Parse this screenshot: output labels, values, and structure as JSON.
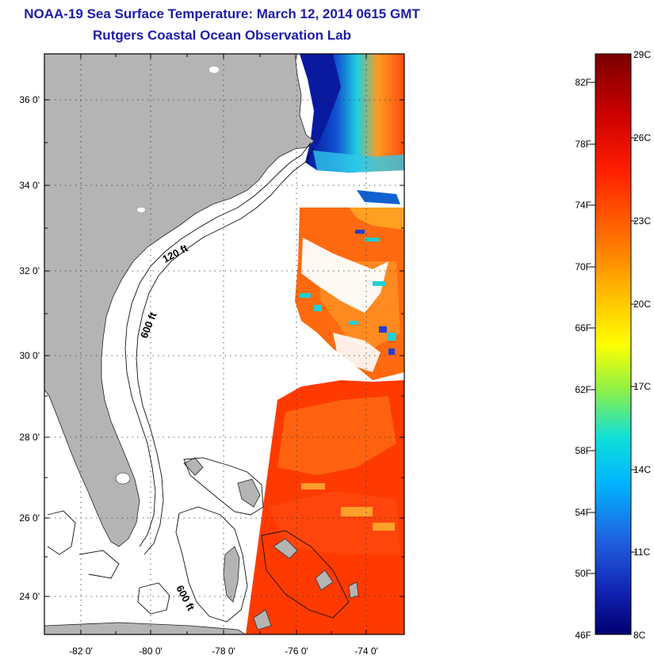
{
  "header": {
    "title": "NOAA-19 Sea Surface Temperature:  March 12, 2014 0615 GMT",
    "subtitle": "Rutgers Coastal Ocean Observation Lab"
  },
  "map": {
    "lat_ticks": [
      "36 0'",
      "34 0'",
      "32 0'",
      "30 0'",
      "28 0'",
      "26 0'",
      "24 0'"
    ],
    "lon_ticks": [
      "-82 0'",
      "-80 0'",
      "-78 0'",
      "-76 0'",
      "-74 0'"
    ],
    "contour_labels": [
      "120 ft",
      "600 ft",
      "600 ft"
    ],
    "colors": {
      "land": "#b4b4b4",
      "ocean_no_data": "#ffffff",
      "sst_warm": "#ff3a00",
      "sst_orange": "#ff8a00",
      "sst_cool": "#10d8ff",
      "sst_cold": "#0a1aa0"
    }
  },
  "colorbar": {
    "range_c": [
      8,
      29
    ],
    "range_f": [
      46,
      84
    ],
    "fahrenheit_labels": [
      "82F",
      "78F",
      "74F",
      "70F",
      "66F",
      "62F",
      "58F",
      "54F",
      "50F",
      "46F"
    ],
    "celsius_labels": [
      "29C",
      "26C",
      "23C",
      "20C",
      "17C",
      "14C",
      "11C",
      "8C"
    ]
  }
}
